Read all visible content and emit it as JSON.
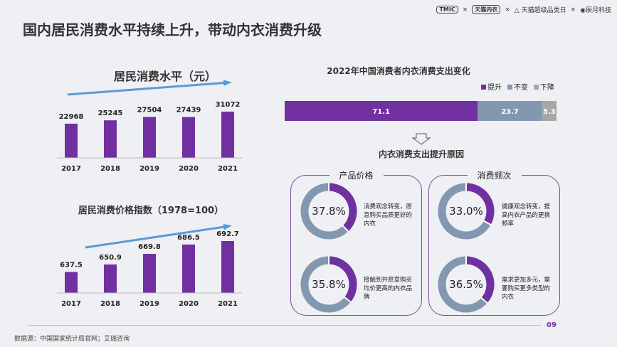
{
  "title": "国内居民消费水平持续上升，带动内衣消费升级",
  "logos": [
    "TMIC",
    "天猫内衣",
    "天猫超级品类日",
    "辰月科技"
  ],
  "colors": {
    "purple": "#7030a0",
    "gray": "#8497b0",
    "light": "#a6a6a6",
    "arrow": "#5b9bd5"
  },
  "chart_data": [
    {
      "type": "bar",
      "title": "居民消费水平（元）",
      "categories": [
        "2017",
        "2018",
        "2019",
        "2020",
        "2021"
      ],
      "values": [
        22968,
        25245,
        27504,
        27439,
        31072
      ],
      "ylim": [
        0,
        31072
      ]
    },
    {
      "type": "bar",
      "title": "居民消费价格指数（1978=100）",
      "categories": [
        "2017",
        "2018",
        "2019",
        "2020",
        "2021"
      ],
      "values": [
        637.5,
        650.9,
        669.8,
        686.5,
        692.7
      ],
      "ylim": [
        600,
        692.7
      ]
    },
    {
      "type": "bar",
      "orientation": "horizontal-stacked",
      "title": "2022年中国消费者内衣消费支出变化",
      "series": [
        {
          "name": "提升",
          "values": [
            71.1
          ]
        },
        {
          "name": "不变",
          "values": [
            23.7
          ]
        },
        {
          "name": "下降",
          "values": [
            5.3
          ]
        }
      ],
      "legend": "top-right"
    },
    {
      "type": "pie",
      "title": "内衣消费支出提升原因",
      "groups": [
        {
          "name": "产品价格",
          "items": [
            {
              "value": 37.8,
              "label": "37.8%",
              "desc": "消费观念转变，愿意购买品质更好的内衣"
            },
            {
              "value": 35.8,
              "label": "35.8%",
              "desc": "接触到并愿意购买均价更高的内衣品牌"
            }
          ]
        },
        {
          "name": "消费频次",
          "items": [
            {
              "value": 33.0,
              "label": "33.0%",
              "desc": "健康观念转变，提高内衣产品的更换频率"
            },
            {
              "value": 36.5,
              "label": "36.5%",
              "desc": "需求更加多元，需要购买更多类型的内衣"
            }
          ]
        }
      ]
    }
  ],
  "footer": {
    "source": "数据源：中国国家统计局官网；艾瑞咨询",
    "page": "09"
  }
}
